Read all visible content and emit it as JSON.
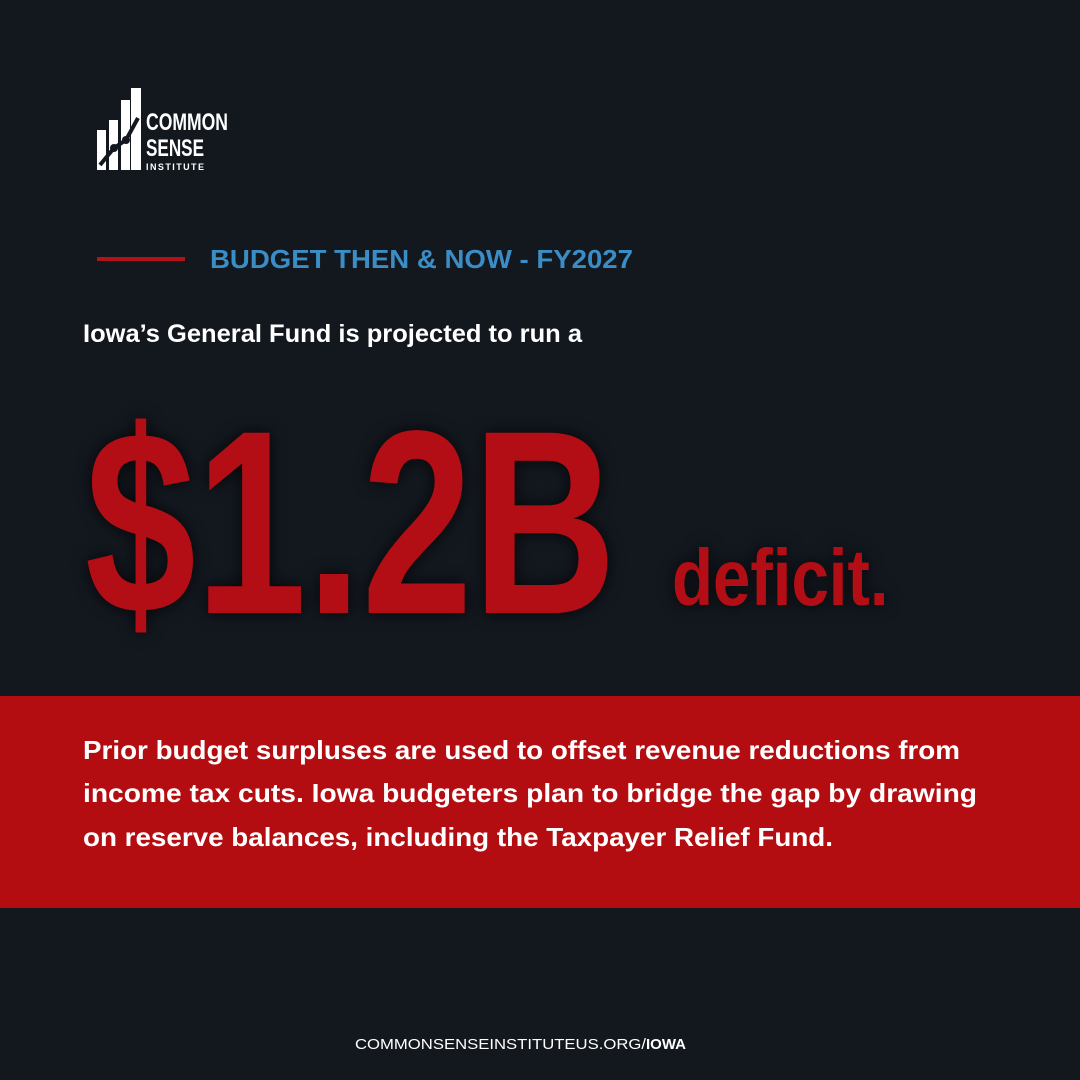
{
  "logo": {
    "line1": "COMMON",
    "line2": "SENSE",
    "line3": "INSTITUTE"
  },
  "kicker": "BUDGET THEN & NOW - FY2027",
  "lead": "Iowa’s General Fund is projected to run a",
  "headline": {
    "amount": "$1.2B",
    "word": "deficit."
  },
  "body": {
    "lines": [
      "Prior budget surpluses are used to offset revenue reductions from",
      "income tax cuts. Iowa budgeters plan to bridge the gap by drawing",
      "on reserve balances, including the Taxpayer Relief Fund."
    ]
  },
  "footer": {
    "site": "COMMONSENSEINSTITUTEUS.ORG/",
    "section": "IOWA"
  }
}
